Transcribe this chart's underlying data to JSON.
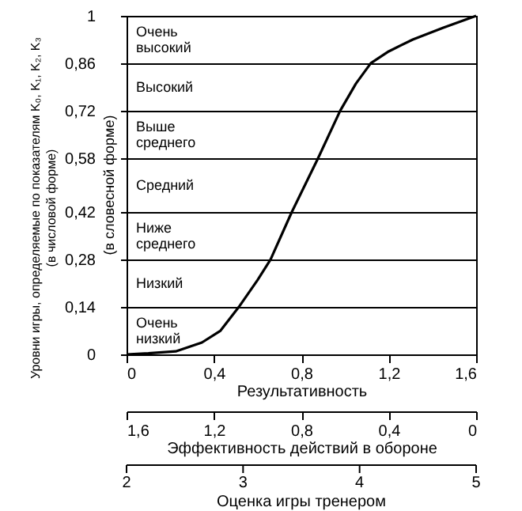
{
  "chart_data": {
    "type": "line",
    "ylabel": "Уровни игры, определяемые по показателям K₀, K₁, K₂, K₃\n(в числовой форме)",
    "y2label": "(в словесной форме)",
    "xlabel": "Результативность",
    "x2label": "Эффективность действий в обороне",
    "annotations": [
      "Очень\nвысокий",
      "Высокий",
      "Выше\nсреднего",
      "Средний",
      "Ниже\nсреднего",
      "Низкий",
      "Очень\nнизкий",
      "2",
      "3",
      "4",
      "5",
      "Оценка игры тренером"
    ],
    "xlim": [
      0,
      1.6
    ],
    "xticks": [
      0,
      {
        "value": 0.4,
        "label": "0,4"
      },
      {
        "value": 0.8,
        "label": "0,8"
      },
      {
        "value": 1.2,
        "label": "1,2"
      },
      {
        "value": 1.6,
        "label": "1,6"
      }
    ],
    "x2lim": [
      1.6,
      0
    ],
    "x2ticks": [
      {
        "value": 1.6,
        "label": "1,6"
      },
      {
        "value": 1.2,
        "label": "1,2"
      },
      {
        "value": 0.8,
        "label": "0,8"
      },
      {
        "value": 0.4,
        "label": "0,4"
      },
      0
    ],
    "ylim": [
      0,
      1
    ],
    "yticks": [
      0,
      {
        "value": 0.14,
        "label": "0,14"
      },
      {
        "value": 0.28,
        "label": "0,28"
      },
      {
        "value": 0.42,
        "label": "0,42"
      },
      {
        "value": 0.58,
        "label": "0,58"
      },
      {
        "value": 0.72,
        "label": "0,72"
      },
      {
        "value": 0.86,
        "label": "0,86"
      },
      1
    ],
    "grid": "y",
    "marker": "none",
    "line_style": "solid",
    "series": [
      {
        "color": "#000000",
        "x": [
          0,
          0.1,
          0.225,
          0.345,
          0.43,
          0.514,
          0.6,
          0.659,
          0.756,
          0.877,
          0.978,
          1.05,
          1.118,
          1.2,
          1.31,
          1.45,
          1.6
        ],
        "values": [
          0,
          0.003,
          0.009,
          0.035,
          0.07,
          0.14,
          0.22,
          0.28,
          0.42,
          0.58,
          0.72,
          0.8,
          0.86,
          0.895,
          0.93,
          0.965,
          1
        ]
      }
    ]
  }
}
